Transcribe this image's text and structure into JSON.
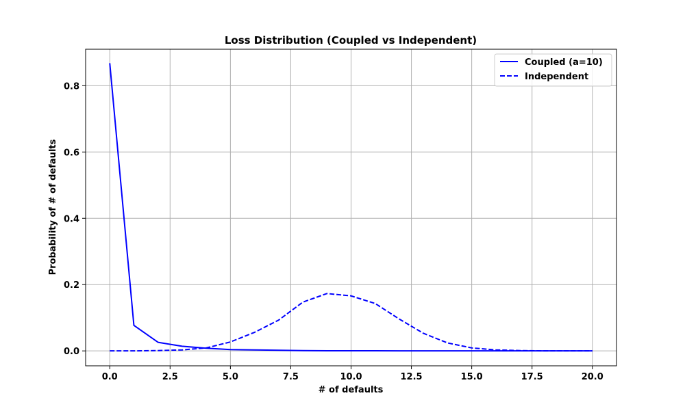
{
  "chart_data": {
    "type": "line",
    "title": "Loss Distribution (Coupled vs Independent)",
    "xlabel": "# of defaults",
    "ylabel": "Probability of # of defaults",
    "xlim": [
      -1.0,
      21.0
    ],
    "ylim": [
      -0.045,
      0.91
    ],
    "x_ticks": [
      0.0,
      2.5,
      5.0,
      7.5,
      10.0,
      12.5,
      15.0,
      17.5,
      20.0
    ],
    "x_tick_labels": [
      "0.0",
      "2.5",
      "5.0",
      "7.5",
      "10.0",
      "12.5",
      "15.0",
      "17.5",
      "20.0"
    ],
    "y_ticks": [
      0.0,
      0.2,
      0.4,
      0.6,
      0.8
    ],
    "y_tick_labels": [
      "0.0",
      "0.2",
      "0.4",
      "0.6",
      "0.8"
    ],
    "grid": true,
    "legend_position": "top-right",
    "x": [
      0,
      1,
      2,
      3,
      4,
      5,
      6,
      7,
      8,
      9,
      10,
      11,
      12,
      13,
      14,
      15,
      16,
      17,
      18,
      19,
      20
    ],
    "series": [
      {
        "name": "Coupled (a=10)",
        "style": "solid",
        "color": "#0000ff",
        "values": [
          0.868,
          0.077,
          0.026,
          0.014,
          0.008,
          0.004,
          0.003,
          0.002,
          0.001,
          0.0005,
          0.0005,
          0.0003,
          0.0002,
          0.0002,
          0.0001,
          0.0001,
          0.0001,
          0.0001,
          0.0,
          0.0,
          0.0
        ]
      },
      {
        "name": "Independent",
        "style": "dashed",
        "color": "#0000ff",
        "values": [
          0.0,
          0.0,
          0.001,
          0.003,
          0.009,
          0.027,
          0.056,
          0.093,
          0.147,
          0.173,
          0.166,
          0.143,
          0.096,
          0.053,
          0.024,
          0.009,
          0.003,
          0.001,
          0.0,
          0.0,
          0.0
        ]
      }
    ]
  }
}
